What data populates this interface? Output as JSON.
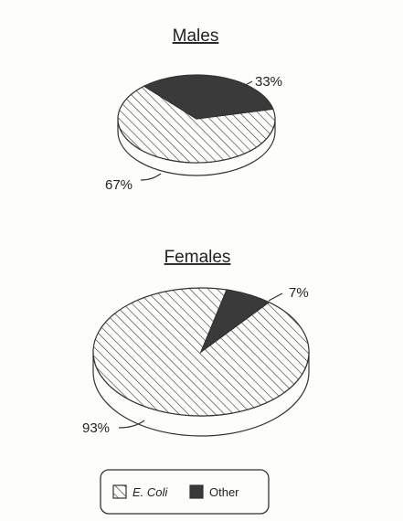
{
  "chart_data": [
    {
      "type": "pie",
      "title": "Males",
      "categories": [
        "E. Coli",
        "Other"
      ],
      "values": [
        67,
        33
      ],
      "labels": [
        "67%",
        "33%"
      ]
    },
    {
      "type": "pie",
      "title": "Females",
      "categories": [
        "E. Coli",
        "Other"
      ],
      "values": [
        93,
        7
      ],
      "labels": [
        "93%",
        "7%"
      ]
    }
  ],
  "legend": {
    "items": [
      {
        "label": "E. Coli",
        "pattern": "hatched"
      },
      {
        "label": "Other",
        "pattern": "solid"
      }
    ]
  },
  "colors": {
    "ink": "#333333",
    "paper": "#fdfdfb"
  }
}
